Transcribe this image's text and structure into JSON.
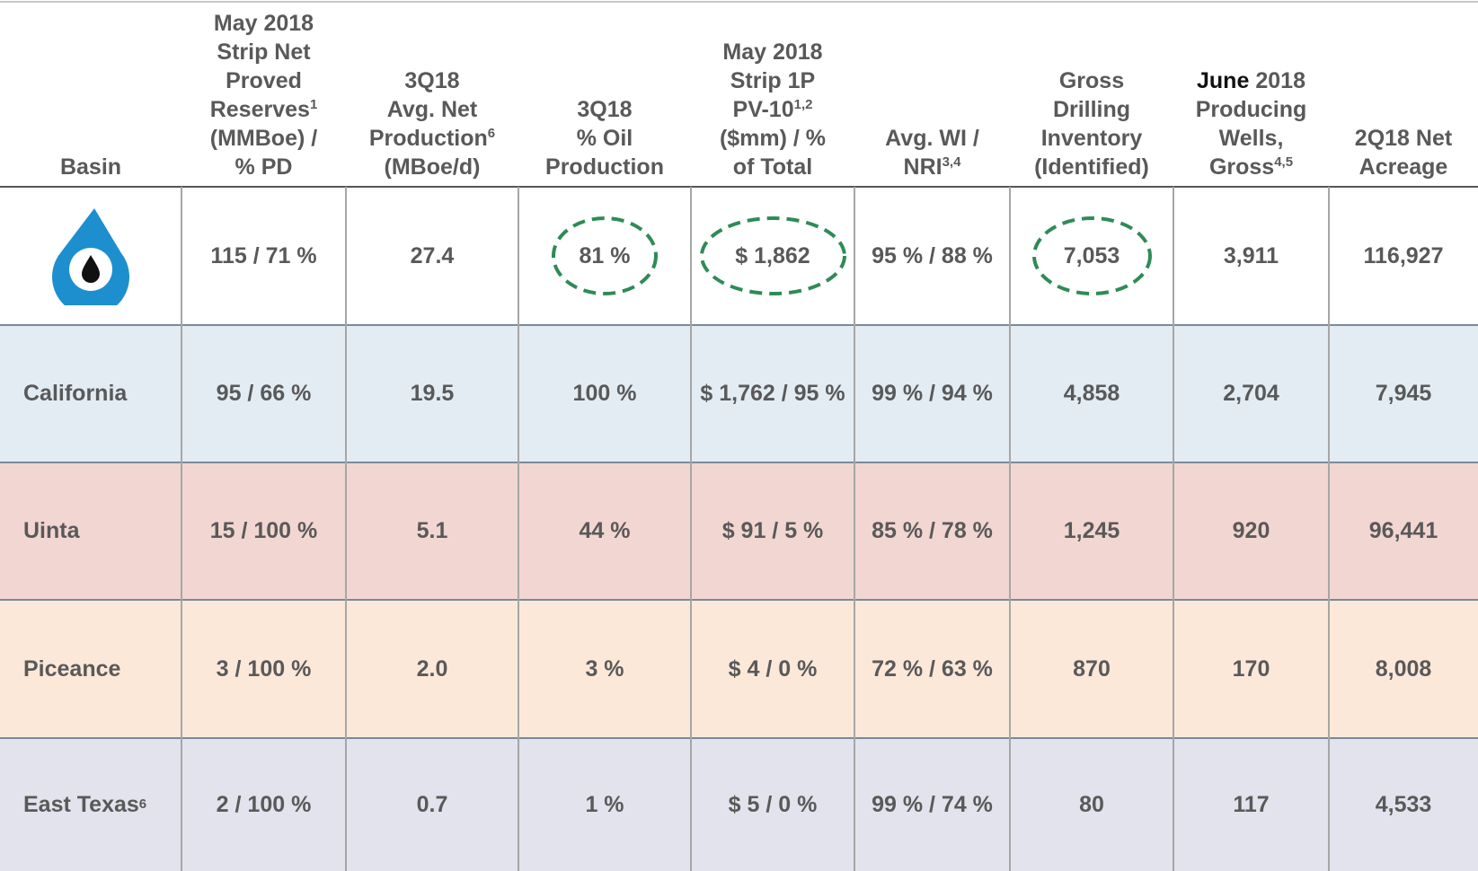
{
  "table": {
    "headers": [
      [
        "Basin"
      ],
      [
        "May 2018",
        "Strip Net",
        "Proved",
        {
          "text": "Reserves",
          "sup": "1"
        },
        "(MMBoe) /",
        "% PD"
      ],
      [
        "3Q18",
        "Avg. Net",
        {
          "text": "Production",
          "sup": "6"
        },
        "(MBoe/d)"
      ],
      [
        "3Q18",
        "% Oil",
        "Production"
      ],
      [
        "May 2018",
        "Strip 1P",
        {
          "text": "PV-10",
          "sup": "1,2"
        },
        "($mm) / %",
        "of Total"
      ],
      [
        "Avg. WI /",
        {
          "text": "NRI",
          "sup": "3,4"
        }
      ],
      [
        "Gross",
        "Drilling",
        "Inventory",
        "(Identified)"
      ],
      [
        {
          "text": "June",
          "rest": "2018"
        },
        "Producing",
        "Wells,",
        {
          "text": "Gross",
          "sup": "4,5"
        }
      ],
      [
        "2Q18 Net",
        "Acreage"
      ]
    ],
    "rows": [
      [
        null,
        "115 / 71 %",
        "27.4",
        "81 %",
        "$ 1,862",
        "95 % / 88 %",
        "7,053",
        "3,911",
        "116,927"
      ],
      [
        "California",
        "95 / 66 %",
        "19.5",
        "100 %",
        "$ 1,762 / 95 %",
        "99 % / 94 %",
        "4,858",
        "2,704",
        "7,945"
      ],
      [
        "Uinta",
        "15 / 100 %",
        "5.1",
        "44 %",
        "$ 91 / 5 %",
        "85 % / 78 %",
        "1,245",
        "920",
        "96,441"
      ],
      [
        "Piceance",
        "3 / 100 %",
        "2.0",
        "3 %",
        "$ 4 / 0 %",
        "72 % / 63 %",
        "870",
        "170",
        "8,008"
      ],
      [
        {
          "text": "East Texas",
          "sup": "6"
        },
        "2 / 100 %",
        "0.7",
        "1 %",
        "$ 5 / 0 %",
        "99 % / 74 %",
        "80",
        "117",
        "4,533"
      ]
    ],
    "row_colors": [
      "#ffffff",
      "#e3ecf3",
      "#f2d6d2",
      "#fbe8d9",
      "#e2e3ec"
    ],
    "circled": [
      3,
      4,
      6
    ]
  }
}
